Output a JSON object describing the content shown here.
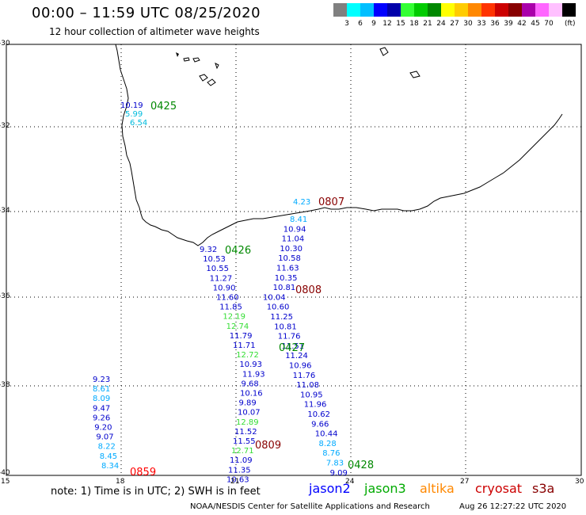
{
  "header": {
    "title": "00:00 – 11:59 UTC 08/25/2020",
    "subtitle": "12 hour collection of altimeter wave heights"
  },
  "color_scale": {
    "colors": [
      "#808080",
      "#00ffff",
      "#00bfff",
      "#0000ff",
      "#0000aa",
      "#33ff33",
      "#00cc00",
      "#008800",
      "#ffff00",
      "#ffcc00",
      "#ff8800",
      "#ff3300",
      "#cc0000",
      "#880000",
      "#aa00aa",
      "#ff66ff",
      "#ffc0ff",
      "#000000"
    ],
    "labels": [
      "3",
      "6",
      "9",
      "12",
      "15",
      "18",
      "21",
      "24",
      "27",
      "30",
      "33",
      "36",
      "39",
      "42",
      "45",
      "70"
    ],
    "unit": "(ft)"
  },
  "axes": {
    "x_ticks": [
      "15",
      "18",
      "21",
      "24",
      "27",
      "30"
    ],
    "y_ticks": [
      "-30",
      "-32",
      "-34",
      "-36",
      "-38",
      "-40"
    ]
  },
  "passes": [
    {
      "label": "0425",
      "color": "#008800"
    },
    {
      "label": "0807",
      "color": "#880000"
    },
    {
      "label": "0426",
      "color": "#008800"
    },
    {
      "label": "0808",
      "color": "#880000"
    },
    {
      "label": "0427",
      "color": "#008800"
    },
    {
      "label": "0809",
      "color": "#880000"
    },
    {
      "label": "0428",
      "color": "#008800"
    },
    {
      "label": "0859",
      "color": "#ff0000"
    }
  ],
  "wave_heights": {
    "track_0425": [
      "10.19",
      "5.99",
      "6.54"
    ],
    "track_0807": [
      "4.23",
      "8.41",
      "10.94",
      "11.04",
      "10.30",
      "10.58",
      "11.63",
      "10.35",
      "10.81",
      "10.04",
      "10.60",
      "11.25",
      "10.81",
      "11.76",
      "11.51",
      "11.24",
      "10.96",
      "11.76",
      "11.08",
      "10.95",
      "11.96",
      "10.62",
      "9.66",
      "10.44",
      "8.28",
      "8.76",
      "7.83",
      "9.09"
    ],
    "track_0426": [
      "9.32",
      "10.53",
      "10.55",
      "11.27",
      "10.90",
      "11.60",
      "11.85",
      "12.19",
      "12.74",
      "11.79",
      "11.71",
      "12.72",
      "10.93",
      "11.93",
      "9.68",
      "10.16",
      "9.89",
      "10.07",
      "12.89",
      "11.52",
      "11.55",
      "12.71",
      "11.09",
      "11.35",
      "10.63"
    ],
    "track_0859": [
      "9.23",
      "8.61",
      "8.09",
      "9.47",
      "9.26",
      "9.20",
      "9.07",
      "8.22",
      "8.45",
      "8.34"
    ]
  },
  "legend": {
    "note": "note: 1) Time is in UTC; 2) SWH is in feet",
    "satellites": [
      {
        "name": "jason2",
        "color": "#0000ff"
      },
      {
        "name": "jason3",
        "color": "#00aa00"
      },
      {
        "name": "altika",
        "color": "#ff8800"
      },
      {
        "name": "cryosat",
        "color": "#cc0000"
      },
      {
        "name": "s3a",
        "color": "#880000"
      }
    ]
  },
  "footer": {
    "credit": "NOAA/NESDIS Center for Satellite Applications and Research",
    "timestamp": "Aug 26 12:27:22 UTC 2020"
  }
}
